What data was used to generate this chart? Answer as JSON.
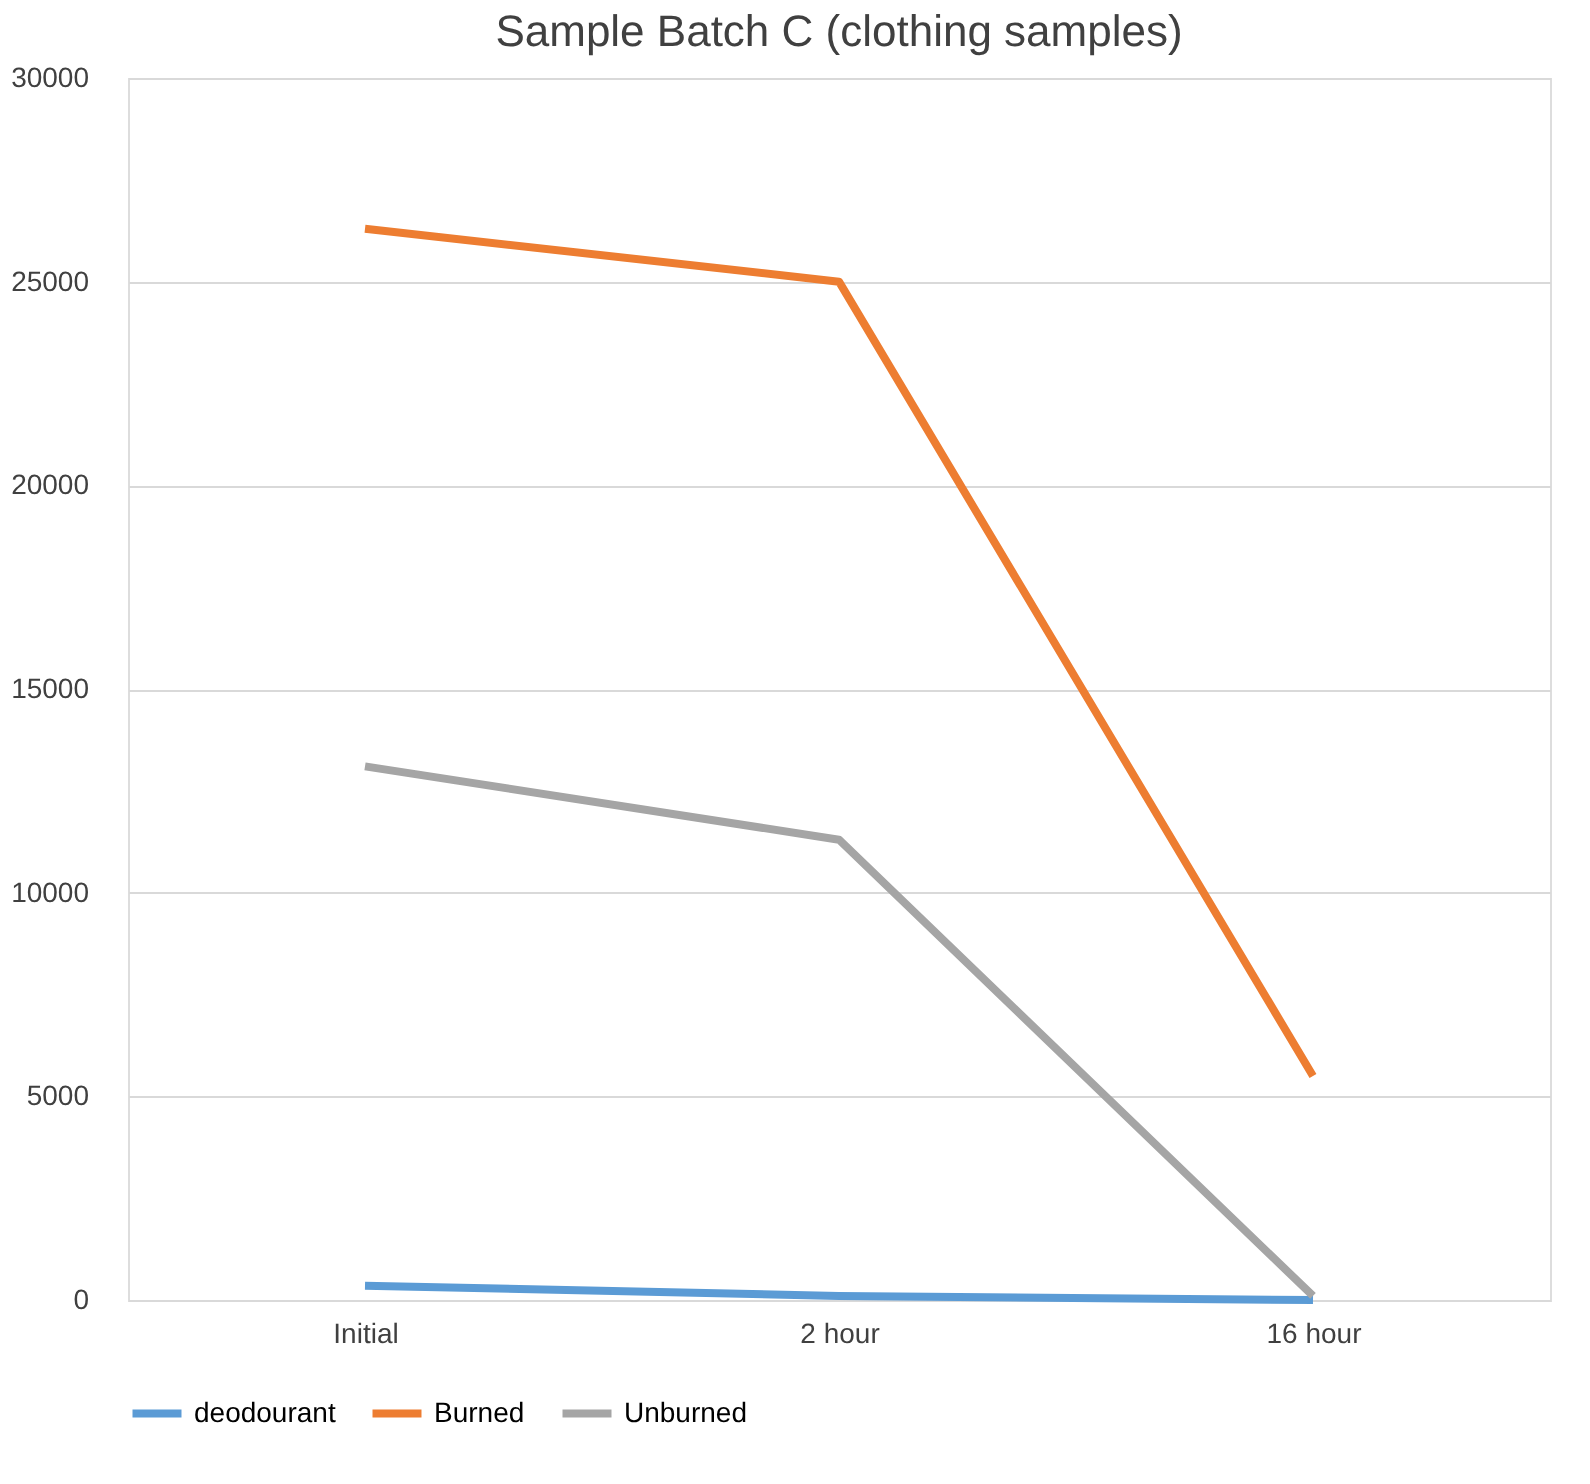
{
  "chart_data": {
    "type": "line",
    "title": "Sample Batch C (clothing samples)",
    "categories": [
      "Initial",
      "2 hour",
      "16 hour"
    ],
    "series": [
      {
        "name": "deodourant",
        "color": "#5b9bd5",
        "values": [
          350,
          100,
          0
        ]
      },
      {
        "name": "Burned",
        "color": "#ed7d31",
        "values": [
          26300,
          25000,
          5500
        ]
      },
      {
        "name": "Unburned",
        "color": "#a5a5a5",
        "values": [
          13100,
          11300,
          100
        ]
      }
    ],
    "ylim": [
      0,
      30000
    ],
    "yticks": [
      0,
      5000,
      10000,
      15000,
      20000,
      25000,
      30000
    ],
    "grid": "y",
    "legend": "bottom",
    "marker": "none",
    "line_style": "solid"
  }
}
